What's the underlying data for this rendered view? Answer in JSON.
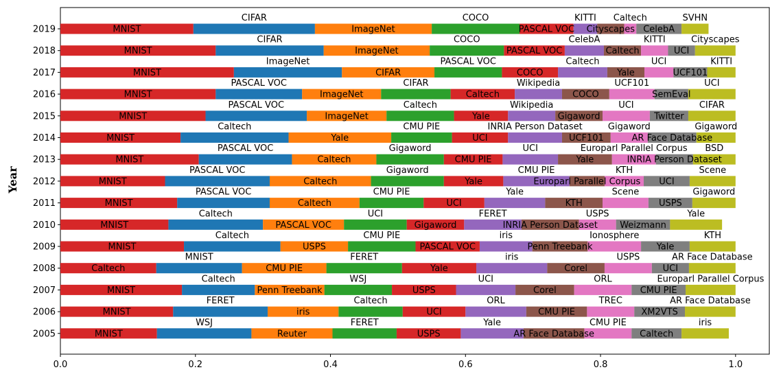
{
  "chart_data": {
    "type": "bar",
    "orientation": "horizontal",
    "stacked": true,
    "title": "",
    "xlabel": "",
    "ylabel": "Year",
    "xlim": [
      0.0,
      1.05
    ],
    "xticks": [
      "0.0",
      "0.2",
      "0.4",
      "0.6",
      "0.8",
      "1.0"
    ],
    "grid": false,
    "legend": "none",
    "segment_colors": [
      "#d62728",
      "#1f77b4",
      "#ff7f0e",
      "#2ca02c",
      "#d62728",
      "#9467bd",
      "#8c564b",
      "#e377c2",
      "#7f7f7f",
      "#bcbd22"
    ],
    "label_positions": [
      "inside",
      "above",
      "inside",
      "above",
      "inside",
      "above",
      "inside",
      "above",
      "inside",
      "above"
    ],
    "rows": [
      {
        "year": "2019",
        "labels": [
          "MNIST",
          "CIFAR",
          "ImageNet",
          "COCO",
          "PASCAL VOC",
          "KITTI",
          "Cityscapes",
          "Caltech",
          "CelebA",
          "SVHN"
        ],
        "values": [
          0.197,
          0.18,
          0.173,
          0.13,
          0.08,
          0.035,
          0.04,
          0.018,
          0.067,
          0.04
        ]
      },
      {
        "year": "2018",
        "labels": [
          "MNIST",
          "CIFAR",
          "ImageNet",
          "COCO",
          "PASCAL VOC",
          "CelebA",
          "Caltech",
          "KITTI",
          "UCI",
          "Cityscapes"
        ],
        "values": [
          0.23,
          0.16,
          0.157,
          0.11,
          0.09,
          0.058,
          0.055,
          0.04,
          0.04,
          0.06
        ]
      },
      {
        "year": "2017",
        "labels": [
          "MNIST",
          "ImageNet",
          "CIFAR",
          "PASCAL VOC",
          "COCO",
          "Caltech",
          "Yale",
          "UCI",
          "UCF101",
          "KITTI"
        ],
        "values": [
          0.257,
          0.16,
          0.137,
          0.1,
          0.083,
          0.073,
          0.055,
          0.043,
          0.05,
          0.042
        ]
      },
      {
        "year": "2016",
        "labels": [
          "MNIST",
          "PASCAL VOC",
          "ImageNet",
          "CIFAR",
          "Caltech",
          "Wikipedia",
          "COCO",
          "UCF101",
          "SemEval",
          "UCI"
        ],
        "values": [
          0.23,
          0.128,
          0.117,
          0.103,
          0.095,
          0.07,
          0.07,
          0.067,
          0.05,
          0.07
        ]
      },
      {
        "year": "2015",
        "labels": [
          "MNIST",
          "PASCAL VOC",
          "ImageNet",
          "Caltech",
          "Yale",
          "Wikipedia",
          "Gigaword",
          "UCI",
          "Twitter",
          "CIFAR"
        ],
        "values": [
          0.215,
          0.15,
          0.118,
          0.1,
          0.08,
          0.07,
          0.07,
          0.07,
          0.057,
          0.07
        ]
      },
      {
        "year": "2014",
        "labels": [
          "MNIST",
          "Caltech",
          "Yale",
          "CMU PIE",
          "UCI",
          "INRIA Person Dataset",
          "UCF101",
          "Gigaword",
          "AR Face Database",
          "Gigaword"
        ],
        "values": [
          0.178,
          0.16,
          0.152,
          0.09,
          0.083,
          0.08,
          0.072,
          0.055,
          0.072,
          0.058
        ]
      },
      {
        "year": "2013",
        "labels": [
          "MNIST",
          "PASCAL VOC",
          "Caltech",
          "Gigaword",
          "CMU PIE",
          "UCI",
          "Yale",
          "Europarl Parallel Corpus",
          "INRIA Person Dataset",
          "BSD"
        ],
        "values": [
          0.205,
          0.138,
          0.125,
          0.1,
          0.087,
          0.082,
          0.08,
          0.065,
          0.055,
          0.063
        ]
      },
      {
        "year": "2012",
        "labels": [
          "MNIST",
          "PASCAL VOC",
          "Caltech",
          "Gigaword",
          "Yale",
          "CMU PIE",
          "Europarl Parallel Corpus",
          "KTH",
          "UCI",
          "Scene"
        ],
        "values": [
          0.155,
          0.155,
          0.15,
          0.108,
          0.088,
          0.098,
          0.052,
          0.058,
          0.068,
          0.068
        ]
      },
      {
        "year": "2011",
        "labels": [
          "MNIST",
          "PASCAL VOC",
          "Caltech",
          "CMU PIE",
          "UCI",
          "Yale",
          "KTH",
          "Scene",
          "USPS",
          "Gigaword"
        ],
        "values": [
          0.173,
          0.137,
          0.133,
          0.095,
          0.09,
          0.09,
          0.085,
          0.068,
          0.065,
          0.064
        ]
      },
      {
        "year": "2010",
        "labels": [
          "MNIST",
          "Caltech",
          "PASCAL VOC",
          "UCI",
          "Gigaword",
          "FERET",
          "INRIA Person Dataset",
          "USPS",
          "Weizmann",
          "Yale"
        ],
        "values": [
          0.16,
          0.14,
          0.12,
          0.093,
          0.085,
          0.085,
          0.085,
          0.055,
          0.08,
          0.077
        ]
      },
      {
        "year": "2009",
        "labels": [
          "MNIST",
          "Caltech",
          "USPS",
          "CMU PIE",
          "PASCAL VOC",
          "iris",
          "Penn Treebank",
          "Ionosphere",
          "Yale",
          "KTH"
        ],
        "values": [
          0.183,
          0.143,
          0.1,
          0.1,
          0.095,
          0.078,
          0.082,
          0.079,
          0.072,
          0.068
        ]
      },
      {
        "year": "2008",
        "labels": [
          "Caltech",
          "MNIST",
          "CMU PIE",
          "FERET",
          "Yale",
          "iris",
          "Corel",
          "USPS",
          "UCI",
          "AR Face Database"
        ],
        "values": [
          0.142,
          0.127,
          0.125,
          0.112,
          0.11,
          0.105,
          0.085,
          0.07,
          0.055,
          0.069
        ]
      },
      {
        "year": "2007",
        "labels": [
          "MNIST",
          "Caltech",
          "Penn Treebank",
          "WSJ",
          "USPS",
          "UCI",
          "Corel",
          "ORL",
          "CMU PIE",
          "Europarl Parallel Corpus"
        ],
        "values": [
          0.18,
          0.108,
          0.103,
          0.1,
          0.095,
          0.088,
          0.087,
          0.085,
          0.08,
          0.074
        ]
      },
      {
        "year": "2006",
        "labels": [
          "MNIST",
          "FERET",
          "iris",
          "Caltech",
          "UCI",
          "ORL",
          "CMU PIE",
          "TREC",
          "XM2VTS",
          "AR Face Database"
        ],
        "values": [
          0.167,
          0.14,
          0.105,
          0.095,
          0.093,
          0.09,
          0.09,
          0.07,
          0.075,
          0.075
        ]
      },
      {
        "year": "2005",
        "labels": [
          "MNIST",
          "WSJ",
          "Reuter",
          "FERET",
          "USPS",
          "Yale",
          "AR Face Database",
          "CMU PIE",
          "Caltech",
          "iris"
        ],
        "values": [
          0.143,
          0.14,
          0.12,
          0.095,
          0.095,
          0.093,
          0.09,
          0.07,
          0.074,
          0.07
        ]
      }
    ]
  }
}
